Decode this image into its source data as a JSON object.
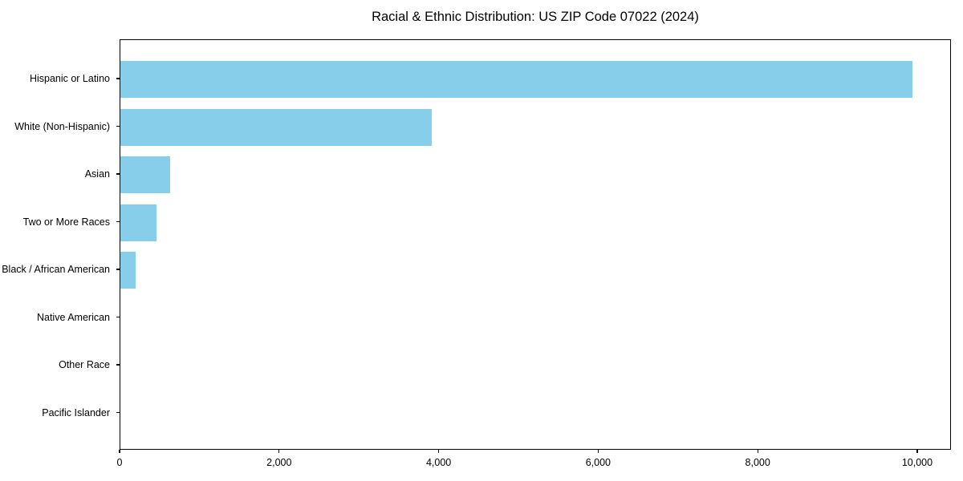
{
  "chart_data": {
    "type": "bar",
    "orientation": "horizontal",
    "title": "Racial & Ethnic Distribution: US ZIP Code 07022 (2024)",
    "xlabel": "",
    "ylabel": "",
    "categories": [
      "Hispanic or Latino",
      "White (Non-Hispanic)",
      "Asian",
      "Two or More Races",
      "Black / African American",
      "Native American",
      "Other Race",
      "Pacific Islander"
    ],
    "values": [
      9930,
      3905,
      625,
      450,
      190,
      0,
      0,
      0
    ],
    "xlim": [
      0,
      10423
    ],
    "xticks": [
      0,
      2000,
      4000,
      6000,
      8000,
      10000
    ],
    "xtick_labels": [
      "0",
      "2,000",
      "4,000",
      "6,000",
      "8,000",
      "10,000"
    ],
    "bar_color": "#87CEEB",
    "axis_color": "#000000",
    "background_color": "#ffffff",
    "grid": false,
    "legend": null
  }
}
